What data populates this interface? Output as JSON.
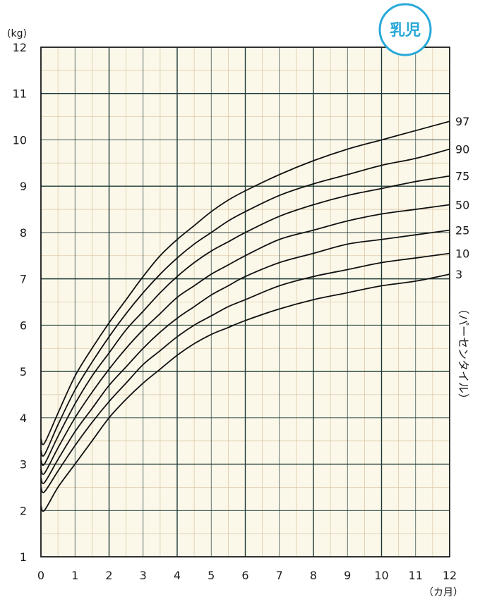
{
  "badge": {
    "text": "乳児",
    "color": "#29a9d8"
  },
  "colors": {
    "plot_bg": "#fbf8ea",
    "major_grid": "#1f3a36",
    "minor_grid": "#dcc9a6",
    "axis": "#1a1a1a",
    "curve": "#111111"
  },
  "chart_data": {
    "type": "line",
    "title": "",
    "ylabel": "(kg)",
    "xlabel": "（カ月）",
    "right_label": "（パーセンタイル）",
    "xlim": [
      0,
      12
    ],
    "ylim": [
      1,
      12
    ],
    "x_ticks": [
      "0",
      "1",
      "2",
      "3",
      "4",
      "5",
      "6",
      "7",
      "8",
      "9",
      "10",
      "11",
      "12"
    ],
    "y_ticks": [
      "1",
      "2",
      "3",
      "4",
      "5",
      "6",
      "7",
      "8",
      "9",
      "10",
      "11",
      "12"
    ],
    "x_major_every": 2,
    "y_major_every": 2,
    "grid": true,
    "x": [
      0,
      0.1,
      0.5,
      1,
      1.5,
      2,
      2.5,
      3,
      3.5,
      4,
      4.5,
      5,
      5.5,
      6,
      7,
      8,
      9,
      10,
      11,
      12
    ],
    "series": [
      {
        "name": "97",
        "values": [
          3.55,
          3.45,
          4.1,
          4.9,
          5.5,
          6.05,
          6.55,
          7.05,
          7.5,
          7.85,
          8.15,
          8.45,
          8.7,
          8.9,
          9.25,
          9.55,
          9.8,
          10.0,
          10.2,
          10.4
        ]
      },
      {
        "name": "90",
        "values": [
          3.3,
          3.2,
          3.85,
          4.6,
          5.2,
          5.75,
          6.25,
          6.7,
          7.1,
          7.45,
          7.75,
          8.0,
          8.25,
          8.45,
          8.8,
          9.05,
          9.25,
          9.45,
          9.6,
          9.8
        ]
      },
      {
        "name": "75",
        "values": [
          3.1,
          3.0,
          3.6,
          4.3,
          4.9,
          5.4,
          5.9,
          6.3,
          6.7,
          7.05,
          7.35,
          7.6,
          7.8,
          8.0,
          8.35,
          8.6,
          8.8,
          8.95,
          9.1,
          9.22
        ]
      },
      {
        "name": "50",
        "values": [
          2.9,
          2.8,
          3.35,
          4.0,
          4.55,
          5.05,
          5.5,
          5.9,
          6.25,
          6.6,
          6.85,
          7.1,
          7.3,
          7.5,
          7.85,
          8.05,
          8.25,
          8.4,
          8.5,
          8.6
        ]
      },
      {
        "name": "25",
        "values": [
          2.7,
          2.6,
          3.1,
          3.7,
          4.2,
          4.7,
          5.1,
          5.5,
          5.85,
          6.15,
          6.4,
          6.65,
          6.85,
          7.05,
          7.35,
          7.55,
          7.75,
          7.85,
          7.95,
          8.05
        ]
      },
      {
        "name": "10",
        "values": [
          2.5,
          2.4,
          2.85,
          3.4,
          3.9,
          4.35,
          4.75,
          5.15,
          5.45,
          5.75,
          6.0,
          6.2,
          6.4,
          6.55,
          6.85,
          7.05,
          7.2,
          7.35,
          7.45,
          7.55
        ]
      },
      {
        "name": "3",
        "values": [
          2.1,
          2.0,
          2.5,
          3.0,
          3.5,
          4.0,
          4.4,
          4.75,
          5.05,
          5.35,
          5.6,
          5.8,
          5.95,
          6.1,
          6.35,
          6.55,
          6.7,
          6.85,
          6.95,
          7.1
        ]
      }
    ]
  }
}
